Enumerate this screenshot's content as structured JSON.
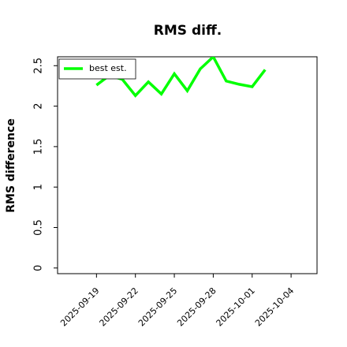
{
  "chart_data": {
    "type": "line",
    "title": "RMS diff.",
    "ylabel": "RMS difference",
    "x": [
      "2025-09-19",
      "2025-09-20",
      "2025-09-21",
      "2025-09-22",
      "2025-09-23",
      "2025-09-24",
      "2025-09-25",
      "2025-09-26",
      "2025-09-27",
      "2025-09-28",
      "2025-09-29",
      "2025-09-30",
      "2025-10-01",
      "2025-10-02"
    ],
    "series": [
      {
        "name": "best est.",
        "color": "#00ff00",
        "values": [
          2.26,
          2.38,
          2.33,
          2.13,
          2.3,
          2.15,
          2.4,
          2.19,
          2.46,
          2.61,
          2.31,
          2.27,
          2.24,
          2.45
        ]
      }
    ],
    "xlim": [
      "2025-09-16",
      "2025-10-06"
    ],
    "xticks": [
      "2025-09-19",
      "2025-09-22",
      "2025-09-25",
      "2025-09-28",
      "2025-10-01",
      "2025-10-04"
    ],
    "ylim": [
      -0.07,
      2.61
    ],
    "yticks": [
      0.0,
      0.5,
      1.0,
      1.5,
      2.0,
      2.5
    ],
    "legend": "upper left"
  }
}
